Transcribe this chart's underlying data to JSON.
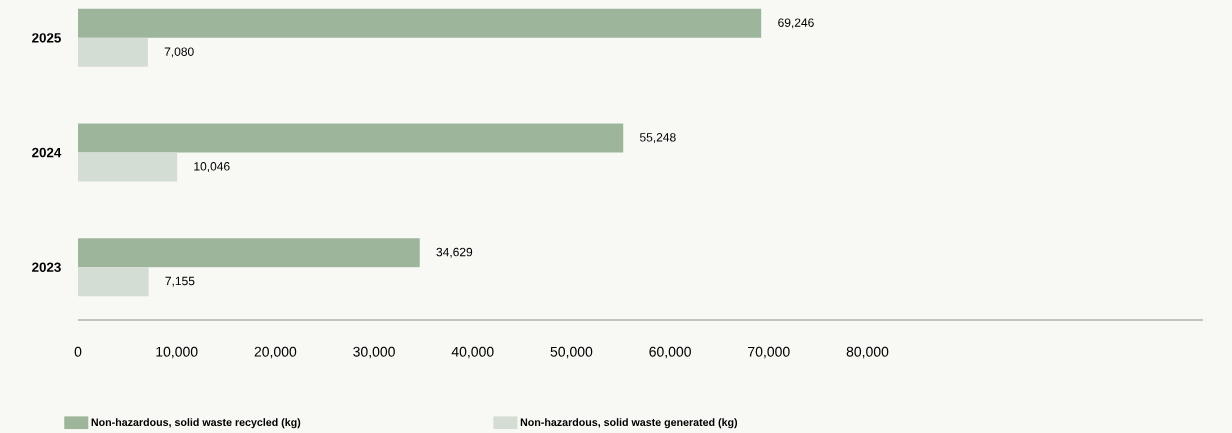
{
  "chart_data": {
    "type": "bar",
    "orientation": "horizontal",
    "categories": [
      "2025",
      "2024",
      "2023"
    ],
    "series": [
      {
        "name": "Non-hazardous, solid waste recycled (kg)",
        "color": "#9db59a",
        "values": [
          69246,
          55248,
          34629
        ],
        "value_labels": [
          "69,246",
          "55,248",
          "34,629"
        ]
      },
      {
        "name": "Non-hazardous, solid waste generated (kg)",
        "color": "#d4ddd3",
        "values": [
          7080,
          10046,
          7155
        ],
        "value_labels": [
          "7,080",
          "10,046",
          "7,155"
        ]
      }
    ],
    "xlim": [
      0,
      114000
    ],
    "xticks": [
      0,
      {
        "value": 10000,
        "label": "10,000"
      },
      {
        "value": 20000,
        "label": "20,000"
      },
      {
        "value": 30000,
        "label": "30,000"
      },
      {
        "value": 40000,
        "label": "40,000"
      },
      {
        "value": 50000,
        "label": "50,000"
      },
      {
        "value": 60000,
        "label": "60,000"
      },
      {
        "value": 70000,
        "label": "70,000"
      },
      {
        "value": 80000,
        "label": "80,000"
      }
    ],
    "legend": "bottom"
  }
}
